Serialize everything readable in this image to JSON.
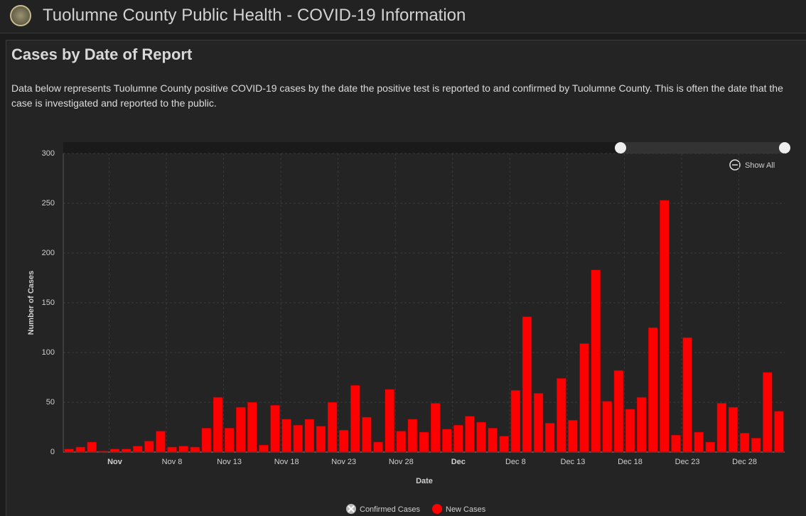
{
  "header": {
    "title": "Tuolumne County Public Health - COVID-19 Information"
  },
  "panel": {
    "title": "Cases by Date of Report",
    "description": "Data below represents Tuolumne County positive COVID-19 cases by the date the positive test is reported to and confirmed by Tuolumne County. This is often the date that the case is investigated and reported to the public."
  },
  "show_all": "Show All",
  "chart_data": {
    "type": "bar",
    "xlabel": "Date",
    "ylabel": "Number of Cases",
    "categories": [
      null,
      null,
      null,
      null,
      "Nov",
      null,
      null,
      null,
      null,
      "Nov 8",
      null,
      null,
      null,
      null,
      "Nov 13",
      null,
      null,
      null,
      null,
      "Nov 18",
      null,
      null,
      null,
      null,
      "Nov 23",
      null,
      null,
      null,
      null,
      "Nov 28",
      null,
      null,
      null,
      null,
      "Dec",
      null,
      null,
      null,
      null,
      "Dec 8",
      null,
      null,
      null,
      null,
      "Dec 13",
      null,
      null,
      null,
      null,
      "Dec 18",
      null,
      null,
      null,
      null,
      "Dec 23",
      null,
      null,
      null,
      null,
      "Dec 28",
      null,
      null,
      null
    ],
    "series": [
      {
        "name": "Confirmed Cases",
        "hidden": true
      },
      {
        "name": "New Cases",
        "color": "#ff0000",
        "values": [
          3,
          5,
          10,
          1,
          3,
          3,
          6,
          11,
          21,
          5,
          6,
          5,
          24,
          55,
          24,
          45,
          50,
          7,
          47,
          33,
          27,
          33,
          26,
          50,
          22,
          67,
          35,
          10,
          63,
          21,
          33,
          20,
          49,
          23,
          27,
          36,
          30,
          24,
          16,
          62,
          136,
          59,
          29,
          74,
          32,
          109,
          183,
          51,
          82,
          43,
          55,
          125,
          253,
          17,
          115,
          20,
          10,
          49,
          45,
          19,
          14,
          80,
          41
        ]
      }
    ],
    "ylim": [
      0,
      300
    ],
    "yticks": [
      0,
      50,
      100,
      150,
      200,
      250,
      300
    ],
    "grid": true
  }
}
